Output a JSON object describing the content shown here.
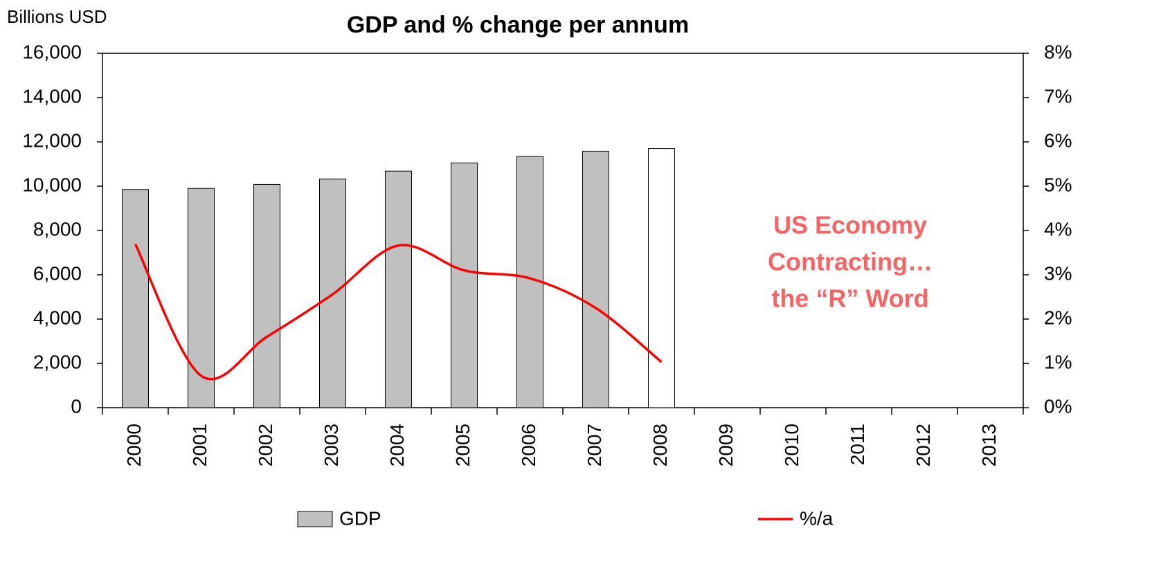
{
  "chart_data": {
    "type": "bar_line",
    "title": "GDP and % change per annum",
    "y_axis_label": "Billions USD",
    "categories": [
      "2000",
      "2001",
      "2002",
      "2003",
      "2004",
      "2005",
      "2006",
      "2007",
      "2008",
      "2009",
      "2010",
      "2011",
      "2012",
      "2013"
    ],
    "series": [
      {
        "name": "GDP",
        "type": "bar",
        "color": "#c0c0c0",
        "colors": [
          "#c0c0c0",
          "#c0c0c0",
          "#c0c0c0",
          "#c0c0c0",
          "#c0c0c0",
          "#c0c0c0",
          "#c0c0c0",
          "#c0c0c0",
          "#ffffff",
          null,
          null,
          null,
          null,
          null
        ],
        "values": [
          9850,
          9900,
          10080,
          10320,
          10680,
          11050,
          11340,
          11580,
          11700,
          null,
          null,
          null,
          null,
          null
        ]
      },
      {
        "name": "%/a",
        "type": "line",
        "color": "#ff0000",
        "axis": "y2",
        "values": [
          3.69,
          0.72,
          1.6,
          2.56,
          3.66,
          3.1,
          2.92,
          2.25,
          1.03,
          null,
          null,
          null,
          null,
          null
        ]
      }
    ],
    "ylim": [
      0,
      16000
    ],
    "yticks": [
      0,
      {
        "value": 2000,
        "label": "2,000"
      },
      {
        "value": 4000,
        "label": "4,000"
      },
      {
        "value": 6000,
        "label": "6,000"
      },
      {
        "value": 8000,
        "label": "8,000"
      },
      {
        "value": 10000,
        "label": "10,000"
      },
      {
        "value": 12000,
        "label": "12,000"
      },
      {
        "value": 14000,
        "label": "14,000"
      },
      {
        "value": 16000,
        "label": "16,000"
      }
    ],
    "y2lim": [
      0,
      8
    ],
    "y2ticks": [
      {
        "value": 0,
        "label": "0%"
      },
      {
        "value": 1,
        "label": "1%"
      },
      {
        "value": 2,
        "label": "2%"
      },
      {
        "value": 3,
        "label": "3%"
      },
      {
        "value": 4,
        "label": "4%"
      },
      {
        "value": 5,
        "label": "5%"
      },
      {
        "value": 6,
        "label": "6%"
      },
      {
        "value": 7,
        "label": "7%"
      },
      {
        "value": 8,
        "label": "8%"
      }
    ],
    "annotation": {
      "lines": [
        "US Economy",
        "Contracting…",
        "the “R” Word"
      ],
      "color": "#f86464"
    },
    "grid": false
  }
}
